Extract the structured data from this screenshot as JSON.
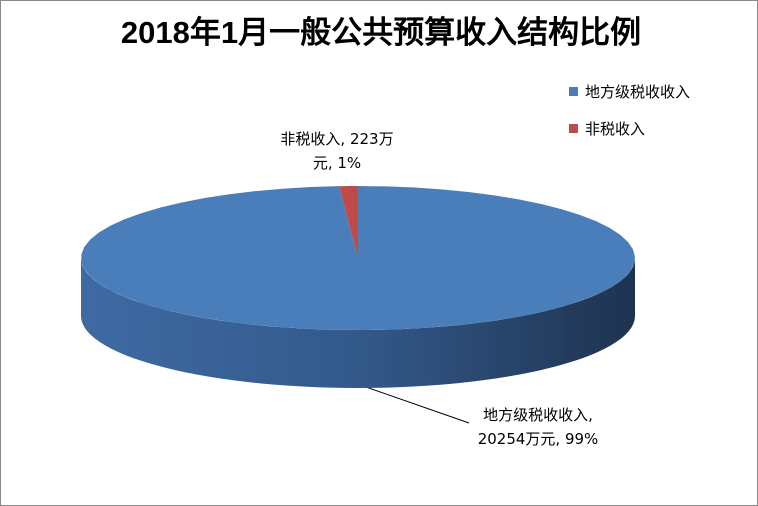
{
  "chart_data": {
    "type": "pie3d",
    "title": "2018年1月一般公共预算收入结构比例",
    "categories": [
      "地方级税收收入",
      "非税收入"
    ],
    "values": [
      20254,
      223
    ],
    "value_labels": [
      "地方级税收收入, 20254万元, 99%",
      "非税收入, 223万元, 1%"
    ],
    "colors": [
      "#4a7ebb",
      "#be4b48"
    ],
    "legend": "right"
  }
}
